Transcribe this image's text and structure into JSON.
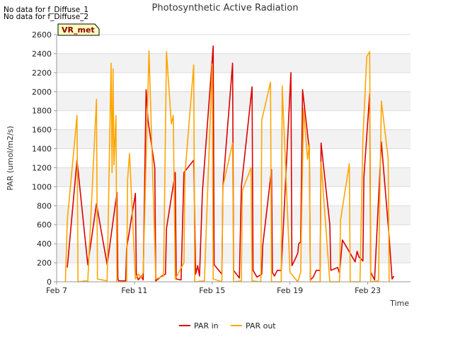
{
  "chart_data": {
    "type": "line",
    "title": "Photosynthetic Active Radiation",
    "xlabel": "Time",
    "ylabel": "PAR (umol/m2/s)",
    "notes": [
      "No data for f_Diffuse_1",
      "No data for f_Diffuse_2"
    ],
    "badge": "VR_met",
    "ylim": [
      0,
      2600
    ],
    "yticks": [
      0,
      200,
      400,
      600,
      800,
      1000,
      1200,
      1400,
      1600,
      1800,
      2000,
      2200,
      2400,
      2600
    ],
    "xlim": [
      0,
      18.2
    ],
    "xticks": [
      {
        "value": 0,
        "label": "Feb 7"
      },
      {
        "value": 4,
        "label": "Feb 11"
      },
      {
        "value": 8,
        "label": "Feb 15"
      },
      {
        "value": 12,
        "label": "Feb 19"
      },
      {
        "value": 16,
        "label": "Feb 23"
      }
    ],
    "legend": {
      "position": "bottom",
      "entries": [
        "PAR in",
        "PAR out"
      ]
    },
    "colors": {
      "PAR in": "#dd0000",
      "PAR out": "#ffa500"
    },
    "series": [
      {
        "name": "PAR in",
        "points": [
          [
            0.55,
            150
          ],
          [
            1.05,
            1280
          ],
          [
            1.6,
            180
          ],
          [
            2.05,
            820
          ],
          [
            2.6,
            180
          ],
          [
            3.1,
            940
          ],
          [
            3.15,
            30
          ],
          [
            3.2,
            10
          ],
          [
            3.55,
            10
          ],
          [
            3.6,
            350
          ],
          [
            4.05,
            930
          ],
          [
            4.1,
            80
          ],
          [
            4.2,
            20
          ],
          [
            4.35,
            60
          ],
          [
            4.45,
            20
          ],
          [
            4.6,
            2020
          ],
          [
            4.7,
            1700
          ],
          [
            5.05,
            1200
          ],
          [
            5.1,
            10
          ],
          [
            5.4,
            60
          ],
          [
            5.6,
            80
          ],
          [
            5.65,
            560
          ],
          [
            6.1,
            1150
          ],
          [
            6.15,
            30
          ],
          [
            6.4,
            20
          ],
          [
            6.55,
            1150
          ],
          [
            7.05,
            1280
          ],
          [
            7.15,
            80
          ],
          [
            7.25,
            170
          ],
          [
            7.35,
            60
          ],
          [
            7.5,
            950
          ],
          [
            8.05,
            2480
          ],
          [
            8.1,
            180
          ],
          [
            8.5,
            80
          ],
          [
            8.55,
            1000
          ],
          [
            9.05,
            2300
          ],
          [
            9.1,
            120
          ],
          [
            9.4,
            40
          ],
          [
            9.5,
            1000
          ],
          [
            10.05,
            2050
          ],
          [
            10.1,
            120
          ],
          [
            10.3,
            50
          ],
          [
            10.55,
            80
          ],
          [
            10.6,
            380
          ],
          [
            11.05,
            1180
          ],
          [
            11.1,
            100
          ],
          [
            11.2,
            60
          ],
          [
            11.35,
            120
          ],
          [
            11.55,
            120
          ],
          [
            12.05,
            2200
          ],
          [
            12.1,
            170
          ],
          [
            12.25,
            230
          ],
          [
            12.4,
            300
          ],
          [
            12.45,
            400
          ],
          [
            12.55,
            420
          ],
          [
            12.65,
            2020
          ],
          [
            13.0,
            1380
          ],
          [
            13.05,
            20
          ],
          [
            13.2,
            50
          ],
          [
            13.35,
            120
          ],
          [
            13.55,
            120
          ],
          [
            13.6,
            1460
          ],
          [
            14.05,
            600
          ],
          [
            14.1,
            120
          ],
          [
            14.45,
            150
          ],
          [
            14.55,
            90
          ],
          [
            14.7,
            440
          ],
          [
            15.35,
            210
          ],
          [
            15.45,
            320
          ],
          [
            15.55,
            260
          ],
          [
            15.75,
            220
          ],
          [
            15.8,
            1100
          ],
          [
            16.1,
            1980
          ],
          [
            16.15,
            100
          ],
          [
            16.35,
            20
          ],
          [
            16.7,
            1470
          ],
          [
            17.1,
            470
          ],
          [
            17.25,
            30
          ],
          [
            17.35,
            60
          ]
        ]
      },
      {
        "name": "PAR out",
        "points": [
          [
            0.45,
            0
          ],
          [
            0.55,
            650
          ],
          [
            1.05,
            1750
          ],
          [
            1.1,
            0
          ],
          [
            1.5,
            10
          ],
          [
            1.6,
            0
          ],
          [
            2.05,
            1920
          ],
          [
            2.1,
            30
          ],
          [
            2.6,
            10
          ],
          [
            2.8,
            2300
          ],
          [
            2.85,
            1150
          ],
          [
            2.9,
            2240
          ],
          [
            2.95,
            1230
          ],
          [
            3.05,
            1750
          ],
          [
            3.1,
            0
          ],
          [
            3.6,
            0
          ],
          [
            3.65,
            1080
          ],
          [
            3.75,
            1350
          ],
          [
            4.05,
            30
          ],
          [
            4.2,
            80
          ],
          [
            4.35,
            40
          ],
          [
            4.45,
            100
          ],
          [
            4.75,
            2430
          ],
          [
            5.1,
            30
          ],
          [
            5.5,
            60
          ],
          [
            5.65,
            2420
          ],
          [
            5.9,
            1660
          ],
          [
            6.0,
            1750
          ],
          [
            6.1,
            30
          ],
          [
            6.55,
            200
          ],
          [
            6.6,
            1130
          ],
          [
            7.05,
            2280
          ],
          [
            7.1,
            0
          ],
          [
            7.6,
            10
          ],
          [
            8.0,
            2290
          ],
          [
            8.05,
            30
          ],
          [
            8.5,
            0
          ],
          [
            8.55,
            1000
          ],
          [
            9.05,
            1460
          ],
          [
            9.1,
            0
          ],
          [
            9.5,
            10
          ],
          [
            9.55,
            960
          ],
          [
            10.0,
            1200
          ],
          [
            10.05,
            10
          ],
          [
            10.5,
            0
          ],
          [
            10.55,
            1700
          ],
          [
            11.0,
            2100
          ],
          [
            11.05,
            0
          ],
          [
            11.55,
            0
          ],
          [
            11.6,
            2060
          ],
          [
            12.0,
            100
          ],
          [
            12.4,
            0
          ],
          [
            12.55,
            100
          ],
          [
            12.7,
            1820
          ],
          [
            12.9,
            1290
          ],
          [
            13.0,
            1450
          ],
          [
            13.05,
            0
          ],
          [
            13.55,
            0
          ],
          [
            13.6,
            1260
          ],
          [
            14.05,
            0
          ],
          [
            14.55,
            0
          ],
          [
            14.6,
            650
          ],
          [
            15.05,
            1240
          ],
          [
            15.1,
            0
          ],
          [
            15.6,
            0
          ],
          [
            15.75,
            1500
          ],
          [
            15.95,
            2370
          ],
          [
            16.1,
            2420
          ],
          [
            16.15,
            0
          ],
          [
            16.55,
            10
          ],
          [
            16.7,
            1900
          ],
          [
            17.05,
            1300
          ],
          [
            17.1,
            0
          ]
        ]
      }
    ]
  }
}
